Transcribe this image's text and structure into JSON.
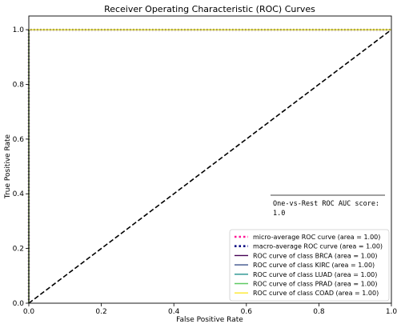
{
  "chart_data": {
    "type": "line",
    "title": "Receiver Operating Characteristic (ROC) Curves",
    "xlabel": "False Positive Rate",
    "ylabel": "True Positive Rate",
    "xlim": [
      0.0,
      1.0
    ],
    "ylim": [
      0.0,
      1.05
    ],
    "xticks": [
      {
        "value": 0.0,
        "label": "0.0"
      },
      {
        "value": 0.2,
        "label": "0.2"
      },
      {
        "value": 0.4,
        "label": "0.4"
      },
      {
        "value": 0.6,
        "label": "0.6"
      },
      {
        "value": 0.8,
        "label": "0.8"
      },
      {
        "value": 1.0,
        "label": "1.0"
      }
    ],
    "yticks": [
      {
        "value": 0.0,
        "label": "0.0"
      },
      {
        "value": 0.2,
        "label": "0.2"
      },
      {
        "value": 0.4,
        "label": "0.4"
      },
      {
        "value": 0.6,
        "label": "0.6"
      },
      {
        "value": 0.8,
        "label": "0.8"
      },
      {
        "value": 1.0,
        "label": "1.0"
      }
    ],
    "grid": false,
    "legend_position": "lower-right",
    "series": [
      {
        "name": "micro-average ROC curve (area = 1.00)",
        "color": "#ff1493",
        "style": "dotted",
        "x": [
          0.0,
          0.0,
          1.0
        ],
        "y": [
          0.0,
          1.0,
          1.0
        ]
      },
      {
        "name": "macro-average ROC curve (area = 1.00)",
        "color": "#000080",
        "style": "dotted",
        "x": [
          0.0,
          0.0,
          1.0
        ],
        "y": [
          0.0,
          1.0,
          1.0
        ]
      },
      {
        "name": "ROC curve of class BRCA (area = 1.00)",
        "color": "#440154",
        "style": "solid",
        "x": [
          0.0,
          0.0,
          1.0
        ],
        "y": [
          0.0,
          1.0,
          1.0
        ]
      },
      {
        "name": "ROC curve of class KIRC (area = 1.00)",
        "color": "#3b528b",
        "style": "solid",
        "x": [
          0.0,
          0.0,
          1.0
        ],
        "y": [
          0.0,
          1.0,
          1.0
        ]
      },
      {
        "name": "ROC curve of class LUAD (area = 1.00)",
        "color": "#21918c",
        "style": "solid",
        "x": [
          0.0,
          0.0,
          1.0
        ],
        "y": [
          0.0,
          1.0,
          1.0
        ]
      },
      {
        "name": "ROC curve of class PRAD (area = 1.00)",
        "color": "#5ec962",
        "style": "solid",
        "x": [
          0.0,
          0.0,
          1.0
        ],
        "y": [
          0.0,
          1.0,
          1.0
        ]
      },
      {
        "name": "ROC curve of class COAD (area = 1.00)",
        "color": "#fde725",
        "style": "solid",
        "x": [
          0.0,
          0.0,
          1.0
        ],
        "y": [
          0.0,
          1.0,
          1.0
        ]
      }
    ],
    "diagonal": {
      "color": "#000000",
      "style": "dashed",
      "x": [
        0.0,
        1.0
      ],
      "y": [
        0.0,
        1.0
      ]
    },
    "annotation": {
      "line1": "One-vs-Rest ROC AUC score:",
      "line2": "1.0"
    }
  }
}
